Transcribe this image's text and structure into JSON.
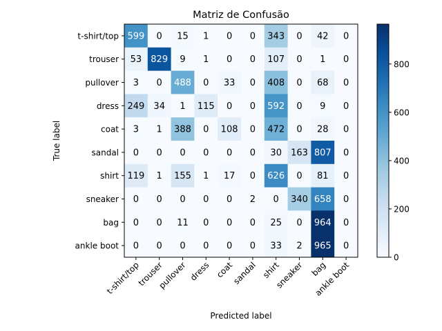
{
  "chart_data": {
    "type": "heatmap",
    "title": "Matriz de Confusão",
    "xlabel": "Predicted label",
    "ylabel": "True label",
    "labels": [
      "t-shirt/top",
      "trouser",
      "pullover",
      "dress",
      "coat",
      "sandal",
      "shirt",
      "sneaker",
      "bag",
      "ankle boot"
    ],
    "matrix": [
      [
        599,
        0,
        15,
        1,
        0,
        0,
        343,
        0,
        42,
        0
      ],
      [
        53,
        829,
        9,
        1,
        0,
        0,
        107,
        0,
        1,
        0
      ],
      [
        3,
        0,
        488,
        0,
        33,
        0,
        408,
        0,
        68,
        0
      ],
      [
        249,
        34,
        1,
        115,
        0,
        0,
        592,
        0,
        9,
        0
      ],
      [
        3,
        1,
        388,
        0,
        108,
        0,
        472,
        0,
        28,
        0
      ],
      [
        0,
        0,
        0,
        0,
        0,
        0,
        30,
        163,
        807,
        0
      ],
      [
        119,
        1,
        155,
        1,
        17,
        0,
        626,
        0,
        81,
        0
      ],
      [
        0,
        0,
        0,
        0,
        0,
        2,
        0,
        340,
        658,
        0
      ],
      [
        0,
        0,
        11,
        0,
        0,
        0,
        25,
        0,
        964,
        0
      ],
      [
        0,
        0,
        0,
        0,
        0,
        0,
        33,
        2,
        965,
        0
      ]
    ],
    "colormap": "Blues",
    "vmin": 0,
    "vmax": 965,
    "colorbar_ticks": [
      0,
      200,
      400,
      600,
      800
    ],
    "grid": false
  }
}
